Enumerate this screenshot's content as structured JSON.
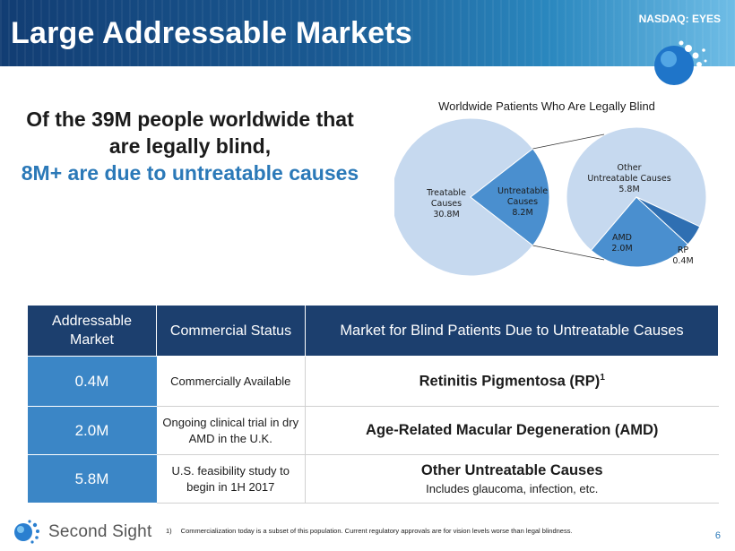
{
  "header": {
    "title": "Large Addressable Markets",
    "ticker": "NASDAQ: EYES"
  },
  "headline": {
    "line1": "Of the 39M people worldwide that are legally blind,",
    "line2": "8M+ are due to untreatable causes"
  },
  "chart_data": {
    "type": "pie",
    "title": "Worldwide Patients Who Are Legally Blind",
    "slices": [
      {
        "name": "Treatable Causes",
        "label": "30.8M",
        "value": 30.8
      },
      {
        "name": "Untreatable Causes",
        "label": "8.2M",
        "value": 8.2
      }
    ],
    "breakdown": {
      "of": "Untreatable Causes",
      "slices": [
        {
          "name": "Other Untreatable Causes",
          "label": "5.8M",
          "value": 5.8
        },
        {
          "name": "AMD",
          "label": "2.0M",
          "value": 2.0
        },
        {
          "name": "RP",
          "label": "0.4M",
          "value": 0.4
        }
      ]
    },
    "colors": {
      "treatable": "#c6d9ef",
      "untreatable": "#4a8fcf",
      "other": "#c6d9ef",
      "amd": "#4a8fcf",
      "rp": "#2f6fb2"
    }
  },
  "table": {
    "headers": [
      "Addressable Market",
      "Commercial Status",
      "Market for Blind Patients Due to Untreatable Causes"
    ],
    "rows": [
      {
        "market": "0.4M",
        "status": "Commercially Available",
        "description": "Retinitis Pigmentosa (RP)",
        "footnote_ref": "1",
        "sub": ""
      },
      {
        "market": "2.0M",
        "status": "Ongoing clinical trial in dry AMD in the U.K.",
        "description": "Age-Related Macular Degeneration (AMD)",
        "footnote_ref": "",
        "sub": ""
      },
      {
        "market": "5.8M",
        "status": "U.S. feasibility study to begin in 1H 2017",
        "description": "Other Untreatable Causes",
        "footnote_ref": "",
        "sub": "Includes glaucoma, infection, etc."
      }
    ]
  },
  "footer": {
    "brand": "Second Sight",
    "footnote_number": "1)",
    "footnote": "Commercialization today is a subset of this population. Current regulatory approvals are for vision levels worse than legal blindness.",
    "page": "6"
  },
  "colors": {
    "header_dark": "#123d73",
    "accent_blue": "#2b79b8",
    "table_header": "#1c3f6e",
    "market_cell": "#3b86c6"
  },
  "icons": {
    "header_logo": "sphere-logo-icon",
    "brand_logo": "second-sight-logo-icon"
  }
}
